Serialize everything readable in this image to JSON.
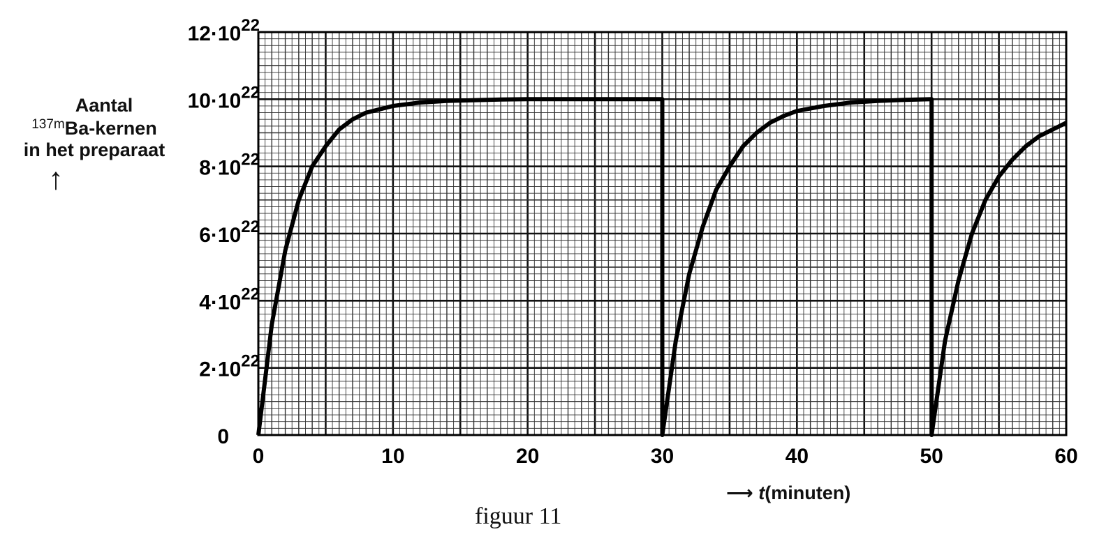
{
  "chart_data": {
    "type": "line",
    "caption": "figuur 11",
    "ylabel": {
      "line1": "Aantal",
      "superscript": "137m",
      "line2": "Ba-kernen",
      "line3": "in het preparaat",
      "arrow": "↑"
    },
    "xlabel": {
      "arrow": "⟶",
      "variable": "t",
      "unit": "(minuten)"
    },
    "xlim": [
      0,
      60
    ],
    "ylim": [
      0,
      12
    ],
    "y_multiplier_label": "10",
    "y_exponent_label": "22",
    "x_ticks": [
      0,
      10,
      20,
      30,
      40,
      50,
      60
    ],
    "y_ticks": [
      {
        "value": 0,
        "coef": "0",
        "exp": ""
      },
      {
        "value": 2,
        "coef": "2·",
        "exp": "22"
      },
      {
        "value": 4,
        "coef": "4·",
        "exp": "22"
      },
      {
        "value": 6,
        "coef": "6·",
        "exp": "22"
      },
      {
        "value": 8,
        "coef": "8·",
        "exp": "22"
      },
      {
        "value": 10,
        "coef": "10·",
        "exp": "22"
      },
      {
        "value": 12,
        "coef": "12·",
        "exp": "22"
      }
    ],
    "grid": true,
    "series": [
      {
        "x": [
          0,
          1,
          2,
          3,
          4,
          5,
          6,
          7,
          8,
          9,
          10,
          12,
          14,
          16,
          18,
          20,
          25,
          30,
          30,
          31,
          32,
          33,
          34,
          35,
          36,
          37,
          38,
          39,
          40,
          42,
          44,
          46,
          48,
          50,
          50,
          51,
          52,
          53,
          54,
          55,
          56,
          57,
          58,
          59,
          60
        ],
        "y": [
          0,
          3.3,
          5.5,
          7.0,
          8.0,
          8.6,
          9.1,
          9.4,
          9.6,
          9.7,
          9.8,
          9.9,
          9.95,
          9.97,
          9.99,
          10.0,
          10.0,
          10.0,
          0,
          2.8,
          4.8,
          6.2,
          7.3,
          8.0,
          8.6,
          9.0,
          9.3,
          9.5,
          9.65,
          9.8,
          9.9,
          9.95,
          9.98,
          10.0,
          0,
          2.8,
          4.6,
          6.0,
          7.0,
          7.7,
          8.2,
          8.6,
          8.9,
          9.1,
          9.3
        ]
      }
    ]
  }
}
